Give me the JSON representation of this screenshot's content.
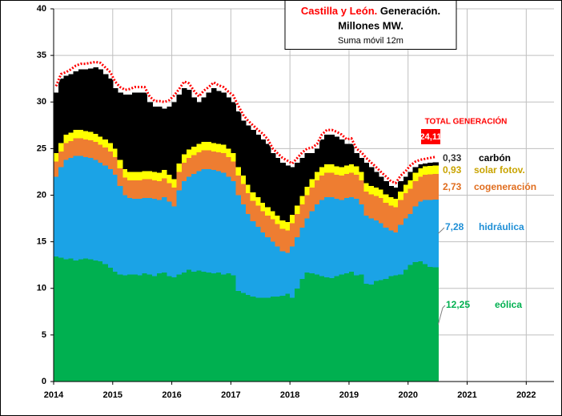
{
  "chart_data": {
    "type": "stacked_bar",
    "title_highlight": "Castilla y León.",
    "title": "Generación.",
    "title_line2": "Millones MW.",
    "subtitle": "Suma móvil 12m",
    "xlim": [
      2014,
      2022.47
    ],
    "xticks": [
      2014,
      2015,
      2016,
      2017,
      2018,
      2019,
      2020,
      2021,
      2022
    ],
    "ylim": [
      0,
      40
    ],
    "yticks": [
      0,
      5,
      10,
      15,
      20,
      25,
      30,
      35,
      40
    ],
    "grid": true,
    "x": [
      2014.0,
      2014.08,
      2014.17,
      2014.25,
      2014.33,
      2014.42,
      2014.5,
      2014.58,
      2014.67,
      2014.75,
      2014.83,
      2014.92,
      2015.0,
      2015.08,
      2015.17,
      2015.25,
      2015.33,
      2015.42,
      2015.5,
      2015.58,
      2015.67,
      2015.75,
      2015.83,
      2015.92,
      2016.0,
      2016.08,
      2016.17,
      2016.25,
      2016.33,
      2016.42,
      2016.5,
      2016.58,
      2016.67,
      2016.75,
      2016.83,
      2016.92,
      2017.0,
      2017.08,
      2017.17,
      2017.25,
      2017.33,
      2017.42,
      2017.5,
      2017.58,
      2017.67,
      2017.75,
      2017.83,
      2017.92,
      2018.0,
      2018.08,
      2018.17,
      2018.25,
      2018.33,
      2018.42,
      2018.5,
      2018.58,
      2018.67,
      2018.75,
      2018.83,
      2018.92,
      2019.0,
      2019.08,
      2019.17,
      2019.25,
      2019.33,
      2019.42,
      2019.5,
      2019.58,
      2019.67,
      2019.75,
      2019.83,
      2019.92,
      2020.0,
      2020.08,
      2020.17,
      2020.25,
      2020.33,
      2020.42
    ],
    "series": [
      {
        "name": "eólica",
        "color": "#00b050",
        "end_label": "12,25",
        "values": [
          13.4,
          13.3,
          13.1,
          13.2,
          13.0,
          13.1,
          13.2,
          13.1,
          13.0,
          12.9,
          12.6,
          12.2,
          11.8,
          11.5,
          11.4,
          11.5,
          11.5,
          11.4,
          11.6,
          11.5,
          11.3,
          11.6,
          11.7,
          11.3,
          11.2,
          11.5,
          11.7,
          12.0,
          11.8,
          11.9,
          11.8,
          11.7,
          11.6,
          11.7,
          11.5,
          11.6,
          11.4,
          9.7,
          9.5,
          9.3,
          9.1,
          9.0,
          9.0,
          9.0,
          9.1,
          9.1,
          9.2,
          9.4,
          9.0,
          10.0,
          11.0,
          11.7,
          11.6,
          11.5,
          11.3,
          11.2,
          11.1,
          11.3,
          11.5,
          11.6,
          11.8,
          11.4,
          11.5,
          10.5,
          10.4,
          10.8,
          10.9,
          11.0,
          11.3,
          11.4,
          11.5,
          12.0,
          12.5,
          12.8,
          12.9,
          12.6,
          12.3,
          12.25
        ]
      },
      {
        "name": "hidráulica",
        "color": "#1ba3e6",
        "end_label": "7,28",
        "values": [
          8.6,
          9.7,
          10.7,
          10.8,
          11.2,
          11.1,
          10.9,
          10.9,
          10.8,
          10.6,
          10.6,
          10.6,
          10.4,
          9.5,
          8.6,
          8.2,
          8.1,
          8.2,
          8.1,
          8.2,
          8.3,
          7.9,
          8.1,
          8.0,
          7.6,
          9.0,
          9.8,
          10.0,
          10.5,
          10.7,
          11.0,
          11.1,
          11.1,
          10.9,
          10.9,
          10.4,
          10.1,
          10.3,
          9.5,
          8.7,
          8.1,
          7.6,
          7.0,
          6.5,
          5.9,
          5.4,
          4.8,
          4.4,
          5.5,
          5.5,
          5.5,
          5.8,
          6.7,
          7.5,
          8.2,
          8.6,
          8.7,
          8.3,
          8.0,
          8.1,
          8.0,
          8.2,
          7.5,
          7.3,
          7.1,
          6.5,
          6.1,
          5.5,
          4.9,
          4.6,
          5.3,
          5.5,
          5.5,
          6.0,
          6.4,
          6.9,
          7.2,
          7.28
        ]
      },
      {
        "name": "cogeneración",
        "color": "#ee7d31",
        "end_label": "2,73",
        "values": [
          1.6,
          1.7,
          1.8,
          1.8,
          1.9,
          1.9,
          1.9,
          1.9,
          1.9,
          1.9,
          1.9,
          1.9,
          1.9,
          1.9,
          1.9,
          1.9,
          2.0,
          2.0,
          2.0,
          2.0,
          2.0,
          2.0,
          2.0,
          2.0,
          2.0,
          2.0,
          2.0,
          2.0,
          2.0,
          2.0,
          2.0,
          2.0,
          2.0,
          2.0,
          2.1,
          2.1,
          2.1,
          2.1,
          2.2,
          2.2,
          2.2,
          2.3,
          2.3,
          2.3,
          2.4,
          2.4,
          2.4,
          2.4,
          2.5,
          2.5,
          2.5,
          2.5,
          2.5,
          2.6,
          2.6,
          2.6,
          2.6,
          2.6,
          2.6,
          2.6,
          2.6,
          2.6,
          2.6,
          2.6,
          2.6,
          2.6,
          2.7,
          2.7,
          2.7,
          2.7,
          2.7,
          2.7,
          2.7,
          2.7,
          2.7,
          2.7,
          2.73,
          2.73
        ]
      },
      {
        "name": "solar fotov.",
        "color": "#ffff00",
        "end_label": "0,93",
        "values": [
          0.9,
          0.9,
          0.9,
          0.9,
          0.9,
          0.9,
          0.9,
          0.9,
          0.9,
          0.9,
          0.9,
          0.9,
          0.9,
          0.9,
          0.9,
          0.9,
          0.9,
          0.9,
          0.9,
          0.9,
          0.9,
          0.9,
          0.9,
          0.9,
          0.9,
          0.9,
          0.9,
          0.9,
          0.9,
          0.9,
          0.9,
          0.9,
          0.9,
          0.9,
          0.9,
          0.9,
          0.9,
          0.9,
          0.9,
          0.9,
          0.9,
          0.9,
          0.9,
          0.9,
          0.9,
          0.9,
          0.9,
          0.9,
          0.9,
          0.9,
          0.9,
          0.9,
          0.9,
          0.9,
          0.9,
          0.9,
          0.9,
          0.9,
          0.9,
          0.9,
          0.9,
          0.9,
          0.9,
          0.9,
          0.9,
          0.9,
          0.9,
          0.9,
          0.9,
          0.9,
          0.9,
          0.9,
          0.9,
          0.9,
          0.9,
          0.9,
          0.9,
          0.93
        ]
      },
      {
        "name": "carbón",
        "color": "#000000",
        "end_label": "0,33",
        "values": [
          6.5,
          6.9,
          6.3,
          6.3,
          6.3,
          6.5,
          6.6,
          6.8,
          7.1,
          7.2,
          7.0,
          6.9,
          6.5,
          7.2,
          8.0,
          8.3,
          8.5,
          8.5,
          8.4,
          7.4,
          7.0,
          7.1,
          6.6,
          7.3,
          8.3,
          7.4,
          7.1,
          6.4,
          5.3,
          4.5,
          4.8,
          5.3,
          5.9,
          5.7,
          5.6,
          5.5,
          5.5,
          6.0,
          5.9,
          6.4,
          6.7,
          6.7,
          6.8,
          6.8,
          6.2,
          6.2,
          6.2,
          6.1,
          5.1,
          4.6,
          4.1,
          3.6,
          2.8,
          2.5,
          3.0,
          3.2,
          3.2,
          3.2,
          3.0,
          2.3,
          2.2,
          1.4,
          1.5,
          2.2,
          2.0,
          1.7,
          1.4,
          1.4,
          1.2,
          1.2,
          1.1,
          0.9,
          0.9,
          0.6,
          0.4,
          0.3,
          0.37,
          0.33
        ]
      }
    ],
    "total": {
      "name": "TOTAL GENERACIÓN",
      "color": "#ff0000",
      "end_label": "24,11",
      "values": [
        31.7,
        33.0,
        33.2,
        33.5,
        33.9,
        34.1,
        34.1,
        34.2,
        34.3,
        34.2,
        33.7,
        33.2,
        32.2,
        31.6,
        31.3,
        31.4,
        31.6,
        31.6,
        31.6,
        30.6,
        30.1,
        30.1,
        30.0,
        30.2,
        30.7,
        31.4,
        32.2,
        32.0,
        31.2,
        30.6,
        31.2,
        31.6,
        32.1,
        31.8,
        31.6,
        31.1,
        30.7,
        29.6,
        28.6,
        28.0,
        27.5,
        27.0,
        26.6,
        26.0,
        25.0,
        24.5,
        24.0,
        23.7,
        23.4,
        24.0,
        24.6,
        25.0,
        25.1,
        25.5,
        26.5,
        27.0,
        27.0,
        26.8,
        26.5,
        26.0,
        26.1,
        25.0,
        24.6,
        24.0,
        23.5,
        23.0,
        22.5,
        22.0,
        21.5,
        21.3,
        22.1,
        22.6,
        23.2,
        23.6,
        23.8,
        23.9,
        24.0,
        24.11
      ]
    }
  }
}
